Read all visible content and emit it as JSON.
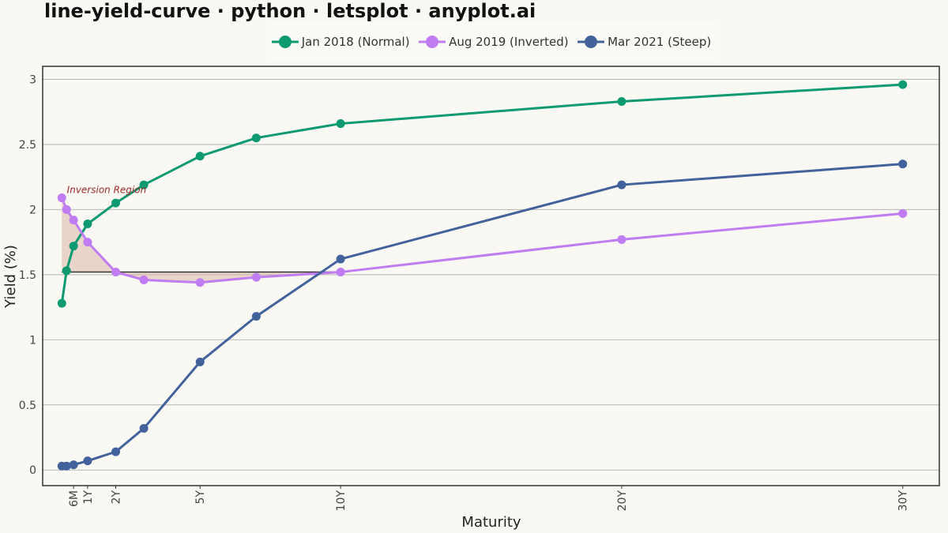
{
  "title": "line-yield-curve · python · letsplot · anyplot.ai",
  "legend": [
    {
      "label": "Jan 2018 (Normal)",
      "color": "#0d9a70"
    },
    {
      "label": "Aug 2019 (Inverted)",
      "color": "#c07cf2"
    },
    {
      "label": "Mar 2021 (Steep)",
      "color": "#42629c"
    }
  ],
  "chart_data": {
    "type": "line",
    "xlabel": "Maturity",
    "ylabel": "Yield (%)",
    "xlim": [
      -0.6,
      31.3
    ],
    "ylim": [
      -0.12,
      3.1
    ],
    "grid": "horizontal",
    "legend_position": "top",
    "x": [
      0.083,
      0.25,
      0.5,
      1,
      2,
      3,
      5,
      7,
      10,
      20,
      30
    ],
    "x_ticks": [
      {
        "value": 0.5,
        "label": "6M"
      },
      {
        "value": 1,
        "label": "1Y"
      },
      {
        "value": 2,
        "label": "2Y"
      },
      {
        "value": 5,
        "label": "5Y"
      },
      {
        "value": 10,
        "label": "10Y"
      },
      {
        "value": 20,
        "label": "20Y"
      },
      {
        "value": 30,
        "label": "30Y"
      }
    ],
    "y_ticks": [
      {
        "value": 0,
        "label": "0"
      },
      {
        "value": 0.5,
        "label": "0.5"
      },
      {
        "value": 1,
        "label": "1"
      },
      {
        "value": 1.5,
        "label": "1.5"
      },
      {
        "value": 2,
        "label": "2"
      },
      {
        "value": 2.5,
        "label": "2.5"
      },
      {
        "value": 3,
        "label": "3"
      }
    ],
    "series": [
      {
        "name": "Jan 2018 (Normal)",
        "color": "#0d9a70",
        "values": [
          1.28,
          1.53,
          1.72,
          1.89,
          2.05,
          2.19,
          2.41,
          2.55,
          2.66,
          2.83,
          2.96
        ]
      },
      {
        "name": "Aug 2019 (Inverted)",
        "color": "#c07cf2",
        "values": [
          2.09,
          2.0,
          1.92,
          1.75,
          1.52,
          1.46,
          1.44,
          1.48,
          1.52,
          1.77,
          1.97
        ]
      },
      {
        "name": "Mar 2021 (Steep)",
        "color": "#42629c",
        "values": [
          0.03,
          0.03,
          0.04,
          0.07,
          0.14,
          0.32,
          0.83,
          1.18,
          1.62,
          2.19,
          2.35
        ]
      }
    ],
    "annotations": [
      {
        "text": "Inversion Region",
        "x": 0.15,
        "y": 2.15,
        "color": "#9e2a2b"
      }
    ],
    "inversion_reference": {
      "y": 1.52,
      "x_from": 0.083,
      "x_to": 10,
      "fill": "#d9b6a8"
    }
  }
}
